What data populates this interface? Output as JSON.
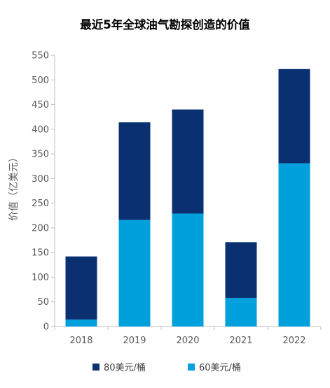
{
  "chart_data": {
    "type": "bar",
    "stacked": true,
    "title": "最近5年全球油气勘探创造的价值",
    "ylabel": "价值（亿美元）",
    "xlabel": "",
    "categories": [
      "2018",
      "2019",
      "2020",
      "2021",
      "2022"
    ],
    "ylim": [
      0,
      550
    ],
    "yticks": [
      0,
      50,
      100,
      150,
      200,
      250,
      300,
      350,
      400,
      450,
      500,
      550
    ],
    "grid": false,
    "legend_position": "bottom",
    "series": [
      {
        "name": "60美元/桶",
        "values": [
          14,
          216,
          229,
          58,
          331
        ],
        "color": "#00a0dc"
      },
      {
        "name": "80美元/桶",
        "values": [
          128,
          198,
          211,
          113,
          191
        ],
        "color": "#0a3072"
      }
    ]
  }
}
